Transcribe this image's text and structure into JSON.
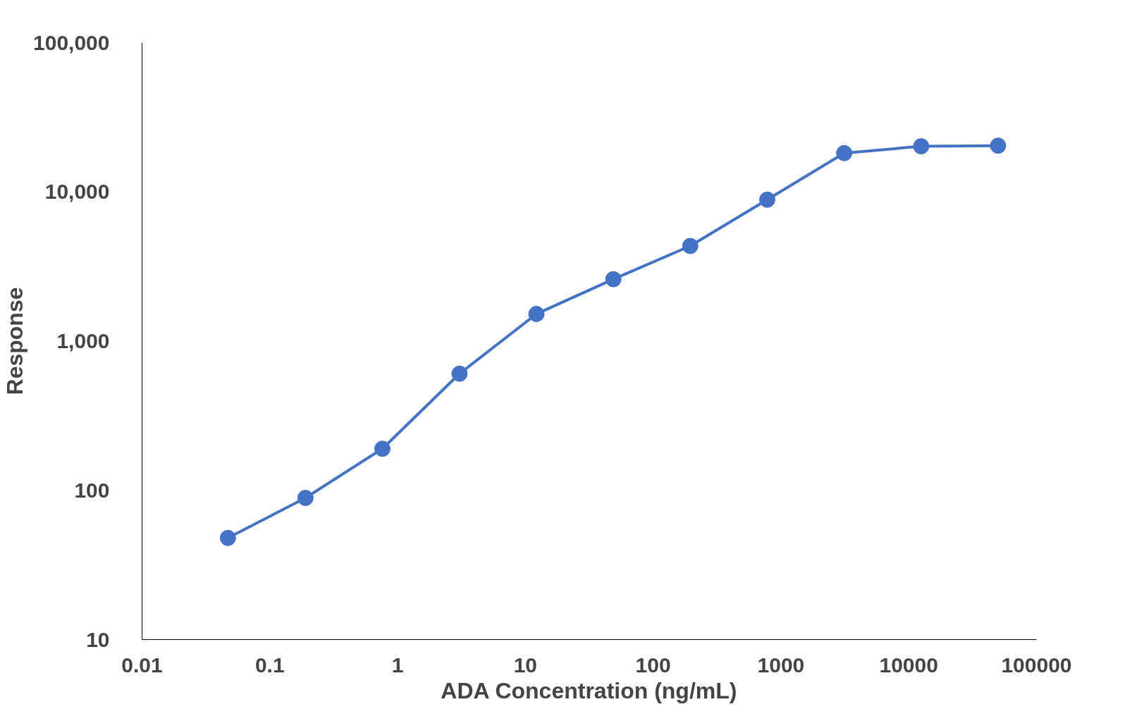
{
  "chart_data": {
    "type": "line",
    "xlabel": "ADA Concentration (ng/mL)",
    "ylabel": "Response",
    "x": [
      0.047,
      0.19,
      0.76,
      3.05,
      12.2,
      48.8,
      195,
      781,
      3125,
      12500,
      50000
    ],
    "series": [
      {
        "color": "#4472c4",
        "values": [
          48,
          89,
          190,
          605,
          1520,
          2600,
          4340,
          8870,
          18200,
          20200,
          20400
        ]
      }
    ],
    "log": "xy",
    "xlim": [
      0.01,
      100000
    ],
    "ylim": [
      10,
      100000
    ],
    "xticks": [
      0.01,
      0.1,
      1,
      10,
      100,
      1000,
      10000,
      100000
    ],
    "yticks": [
      {
        "value": 10,
        "label": "10"
      },
      {
        "value": 100,
        "label": "100"
      },
      {
        "value": 1000,
        "label": "1,000"
      },
      {
        "value": 10000,
        "label": "10,000"
      },
      {
        "value": 100000,
        "label": "100,000"
      }
    ],
    "grid": false,
    "marker": "circle",
    "line_style": "solid"
  }
}
